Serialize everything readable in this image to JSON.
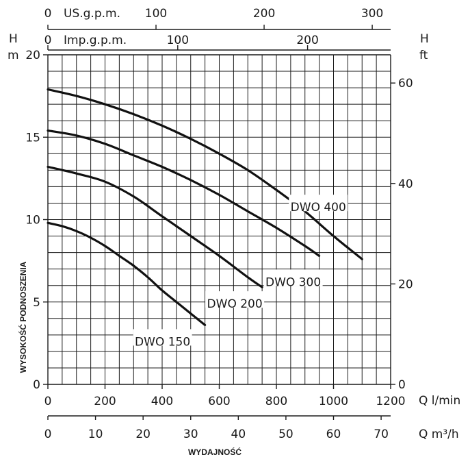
{
  "chart_data": {
    "type": "line",
    "xlabel": "WYDAJNOŚĆ",
    "ylabel": "WYSOKOŚĆ PODNOSZENIA",
    "x_unit_label": "Q  l/min",
    "x2_unit_label": "Q  m³/h",
    "y_left_unit": "H",
    "y_left_unit2": "m",
    "y_right_unit": "H",
    "y_right_unit2": "ft",
    "top_axis_1_label": "US.g.p.m.",
    "top_axis_2_label": "Imp.g.p.m.",
    "xlim": [
      0,
      1200
    ],
    "ylim": [
      0,
      20
    ],
    "x_ticks": [
      "0",
      "200",
      "400",
      "600",
      "800",
      "1000",
      "1200"
    ],
    "x2_ticks": [
      "0",
      "10",
      "20",
      "30",
      "40",
      "50",
      "60",
      "70"
    ],
    "y_ticks": [
      "0",
      "5",
      "10",
      "15",
      "20"
    ],
    "y_right_ticks": [
      "0",
      "20",
      "40",
      "60"
    ],
    "us_gpm_ticks": [
      "0",
      "100",
      "200",
      "300"
    ],
    "imp_gpm_ticks": [
      "0",
      "100",
      "200"
    ],
    "grid": true,
    "series": [
      {
        "name": "DWO 150",
        "x": [
          0,
          50,
          100,
          150,
          200,
          250,
          300,
          350,
          400,
          450,
          500,
          550
        ],
        "y": [
          9.8,
          9.6,
          9.3,
          8.9,
          8.4,
          7.8,
          7.2,
          6.5,
          5.7,
          5.0,
          4.3,
          3.6
        ]
      },
      {
        "name": "DWO 200",
        "x": [
          0,
          100,
          200,
          300,
          400,
          500,
          600,
          700,
          750
        ],
        "y": [
          13.2,
          12.8,
          12.3,
          11.4,
          10.2,
          9.0,
          7.8,
          6.5,
          5.9
        ]
      },
      {
        "name": "DWO 300",
        "x": [
          0,
          100,
          200,
          300,
          400,
          500,
          600,
          700,
          800,
          900,
          950
        ],
        "y": [
          15.4,
          15.1,
          14.6,
          13.9,
          13.2,
          12.4,
          11.5,
          10.5,
          9.5,
          8.4,
          7.8
        ]
      },
      {
        "name": "DWO 400",
        "x": [
          0,
          100,
          200,
          300,
          400,
          500,
          600,
          700,
          800,
          900,
          1000,
          1100
        ],
        "y": [
          17.9,
          17.5,
          17.0,
          16.4,
          15.7,
          14.9,
          14.0,
          13.0,
          11.8,
          10.5,
          9.0,
          7.6
        ]
      }
    ]
  }
}
